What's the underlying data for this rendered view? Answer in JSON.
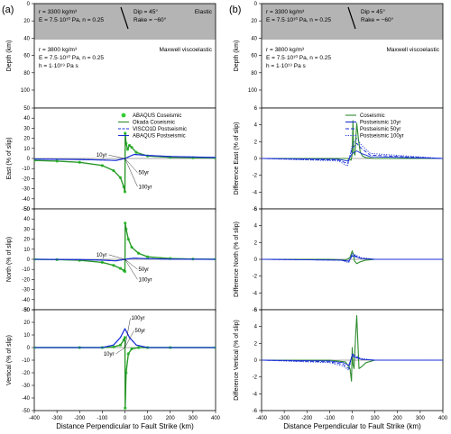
{
  "panel_labels": [
    "(a)",
    "(b)"
  ],
  "model": {
    "elastic_layer": {
      "density": "r = 3300 kg/m³",
      "elastic": "E = 7.5·10¹⁰ Pa, n = 0.25",
      "dip": "Dip = 45°",
      "rake": "Rake = −60°",
      "name": "Elastic"
    },
    "viscoelastic_layer": {
      "density": "r = 3800 kg/m³",
      "elastic": "E = 7.5·10¹⁰ Pa, n = 0.25",
      "viscosity": "h = 1·10¹⁹ Pa s",
      "name": "Maxwell viscoelastic"
    },
    "depth_label": "Depth (km)",
    "depth_ticks": [
      "0",
      "20",
      "40",
      "60",
      "80",
      "100"
    ]
  },
  "x_axis": {
    "label": "Distance Perpendicular to Fault Strike (km)",
    "ticks": [
      "-400",
      "-300",
      "-200",
      "-100",
      "0",
      "100",
      "200",
      "300",
      "400"
    ]
  },
  "chart_data": [
    {
      "type": "line",
      "id": "east-left",
      "ylabel": "East (% of slip)",
      "ylim": [
        -50,
        50
      ],
      "yticks": [
        50,
        40,
        30,
        20,
        10,
        0,
        -10,
        -20,
        -30,
        -40,
        -50
      ],
      "xlim": [
        -400,
        400
      ],
      "legend": [
        "ABAQUS Coseismic",
        "Okada Coseismic",
        "VISCO1D Postseismic",
        "ABAQUS Postseismic"
      ],
      "annotations": [
        "10yr",
        "50yr",
        "100yr"
      ],
      "series": [
        {
          "name": "ABAQUS Coseismic",
          "x": [
            -400,
            -300,
            -200,
            -100,
            -50,
            -20,
            -5,
            0,
            1,
            5,
            12,
            20,
            30,
            50,
            100,
            200,
            300,
            400
          ],
          "y": [
            -2,
            -2.6,
            -3.8,
            -7,
            -12,
            -19,
            -28,
            -33,
            25,
            15,
            9,
            13,
            11,
            6,
            2.5,
            1.2,
            0.7,
            0.5
          ]
        },
        {
          "name": "Okada Coseismic",
          "x": [
            -400,
            -300,
            -200,
            -100,
            -50,
            -20,
            -5,
            0,
            1,
            5,
            12,
            20,
            30,
            50,
            100,
            200,
            300,
            400
          ],
          "y": [
            -2,
            -2.6,
            -3.8,
            -7,
            -12,
            -19,
            -28,
            -33,
            25,
            15,
            9,
            13,
            11,
            6,
            2.5,
            1.2,
            0.7,
            0.5
          ]
        },
        {
          "name": "VISCO1D Postseismic",
          "x": [
            -400,
            -200,
            -100,
            -40,
            0,
            40,
            100,
            200,
            400
          ],
          "y": [
            -0.5,
            -1,
            -1.5,
            -2,
            0,
            4,
            3,
            2,
            1
          ]
        },
        {
          "name": "ABAQUS Postseismic",
          "x": [
            -400,
            -200,
            -100,
            -40,
            0,
            40,
            100,
            200,
            400
          ],
          "y": [
            -0.5,
            -1,
            -1.5,
            -2,
            0,
            4,
            3,
            2,
            1
          ]
        }
      ]
    },
    {
      "type": "line",
      "id": "north-left",
      "ylabel": "North (% of slip)",
      "ylim": [
        -50,
        50
      ],
      "yticks": [
        50,
        40,
        30,
        20,
        10,
        0,
        -10,
        -20,
        -30,
        -40,
        -50
      ],
      "xlim": [
        -400,
        400
      ],
      "annotations": [
        "10yr",
        "50yr",
        "100yr"
      ],
      "series": [
        {
          "name": "ABAQUS Coseismic",
          "x": [
            -400,
            -300,
            -200,
            -100,
            -50,
            -20,
            -5,
            0,
            1,
            5,
            15,
            30,
            60,
            100,
            200,
            300,
            400
          ],
          "y": [
            0,
            -0.3,
            -1,
            -3,
            -6,
            -9,
            -11,
            -12,
            36,
            30,
            20,
            12,
            6,
            2.5,
            0.8,
            0.3,
            0.1
          ]
        },
        {
          "name": "Okada Coseismic",
          "x": [
            -400,
            -300,
            -200,
            -100,
            -50,
            -20,
            -5,
            0,
            1,
            5,
            15,
            30,
            60,
            100,
            200,
            300,
            400
          ],
          "y": [
            0,
            -0.3,
            -1,
            -3,
            -6,
            -9,
            -11,
            -12,
            36,
            30,
            20,
            12,
            6,
            2.5,
            0.8,
            0.3,
            0.1
          ]
        },
        {
          "name": "VISCO1D Postseismic",
          "x": [
            -400,
            -200,
            -100,
            -40,
            0,
            40,
            100,
            200,
            400
          ],
          "y": [
            0,
            -0.3,
            -0.8,
            -1.5,
            0,
            1.2,
            0.6,
            0.2,
            0
          ]
        },
        {
          "name": "ABAQUS Postseismic",
          "x": [
            -400,
            -200,
            -100,
            -40,
            0,
            40,
            100,
            200,
            400
          ],
          "y": [
            0,
            -0.3,
            -0.8,
            -1.5,
            0,
            1.2,
            0.6,
            0.2,
            0
          ]
        }
      ]
    },
    {
      "type": "line",
      "id": "vertical-left",
      "ylabel": "Vertical (% of slip)",
      "ylim": [
        -50,
        30
      ],
      "yticks": [
        30,
        20,
        10,
        0,
        -10,
        -20,
        -30,
        -40,
        -50
      ],
      "xlim": [
        -400,
        400
      ],
      "xlabel": "Distance Perpendicular to Fault Strike (km)",
      "annotations": [
        "100yr",
        "50yr",
        "10yr"
      ],
      "series": [
        {
          "name": "ABAQUS Coseismic",
          "x": [
            -400,
            -200,
            -100,
            -50,
            -20,
            -5,
            0,
            1,
            5,
            15,
            30,
            60,
            100,
            200,
            400
          ],
          "y": [
            0,
            0,
            0,
            0.5,
            2,
            6,
            8,
            -48,
            -20,
            -5,
            -1,
            0,
            0,
            0,
            0
          ]
        },
        {
          "name": "Okada Coseismic",
          "x": [
            -400,
            -200,
            -100,
            -50,
            -20,
            -5,
            0,
            1,
            5,
            15,
            30,
            60,
            100,
            200,
            400
          ],
          "y": [
            0,
            0,
            0,
            0.5,
            2,
            6,
            8,
            -48,
            -20,
            -5,
            -1,
            0,
            0,
            0,
            0
          ]
        },
        {
          "name": "VISCO1D Postseismic",
          "x": [
            -400,
            -200,
            -100,
            -50,
            -20,
            0,
            20,
            50,
            100,
            200,
            400
          ],
          "y": [
            0,
            0,
            0,
            2,
            8,
            15,
            8,
            2,
            0,
            0,
            0
          ]
        },
        {
          "name": "ABAQUS Postseismic",
          "x": [
            -400,
            -200,
            -100,
            -50,
            -20,
            0,
            20,
            50,
            100,
            200,
            400
          ],
          "y": [
            0,
            0,
            0,
            2,
            8,
            15,
            8,
            2,
            0,
            0,
            0
          ]
        }
      ]
    },
    {
      "type": "line",
      "id": "east-right",
      "ylabel": "Difference East (% of slip)",
      "ylim": [
        -6,
        6
      ],
      "yticks": [
        6,
        4,
        2,
        0,
        -2,
        -4,
        -6
      ],
      "xlim": [
        -400,
        400
      ],
      "legend": [
        "Coseismic",
        "Postseismic 10yr",
        "Postseismic 50yr",
        "Postseismic 100yr"
      ],
      "series": [
        {
          "name": "Coseismic",
          "x": [
            -400,
            -100,
            -20,
            -5,
            0,
            3,
            6,
            12,
            20,
            28,
            35,
            45,
            60,
            100,
            400
          ],
          "y": [
            0,
            0,
            0,
            -0.2,
            0.5,
            4.5,
            0.8,
            0.4,
            4.2,
            2.2,
            0.8,
            0.3,
            0.1,
            0,
            0
          ]
        },
        {
          "name": "Postseismic 10yr",
          "x": [
            -400,
            -60,
            -20,
            0,
            20,
            40,
            80,
            400
          ],
          "y": [
            0,
            -0.1,
            -0.3,
            0.6,
            0.9,
            0.6,
            0.2,
            0
          ]
        },
        {
          "name": "Postseismic 50yr",
          "x": [
            -400,
            -60,
            -20,
            0,
            20,
            40,
            80,
            400
          ],
          "y": [
            0,
            -0.2,
            -0.6,
            1.2,
            1.8,
            1.2,
            0.4,
            0
          ]
        },
        {
          "name": "Postseismic 100yr",
          "x": [
            -400,
            -60,
            -20,
            0,
            20,
            40,
            80,
            400
          ],
          "y": [
            0,
            -0.3,
            -0.9,
            1.6,
            2.4,
            1.6,
            0.6,
            0
          ]
        }
      ]
    },
    {
      "type": "line",
      "id": "north-right",
      "ylabel": "Difference North (% of slip)",
      "ylim": [
        -6,
        6
      ],
      "yticks": [
        6,
        4,
        2,
        0,
        -2,
        -4,
        -6
      ],
      "xlim": [
        -400,
        400
      ],
      "series": [
        {
          "name": "Coseismic",
          "x": [
            -400,
            -100,
            -30,
            -10,
            0,
            5,
            10,
            20,
            35,
            60,
            100,
            400
          ],
          "y": [
            0,
            0,
            -0.1,
            0.2,
            1,
            0.6,
            -0.2,
            -0.5,
            -0.3,
            -0.1,
            0,
            0
          ]
        },
        {
          "name": "Postseismic 10yr",
          "x": [
            -400,
            -50,
            -15,
            0,
            15,
            40,
            100,
            400
          ],
          "y": [
            0,
            -0.1,
            -0.2,
            0.4,
            0.3,
            0.1,
            0,
            0
          ]
        },
        {
          "name": "Postseismic 50yr",
          "x": [
            -400,
            -50,
            -15,
            0,
            15,
            40,
            100,
            400
          ],
          "y": [
            0,
            -0.1,
            -0.3,
            0.6,
            0.4,
            0.1,
            0,
            0
          ]
        },
        {
          "name": "Postseismic 100yr",
          "x": [
            -400,
            -50,
            -15,
            0,
            15,
            40,
            100,
            400
          ],
          "y": [
            0,
            -0.1,
            -0.4,
            0.7,
            0.5,
            0.2,
            0,
            0
          ]
        }
      ]
    },
    {
      "type": "line",
      "id": "vertical-right",
      "ylabel": "Difference Vertical (% of slip)",
      "ylim": [
        -6,
        6
      ],
      "yticks": [
        6,
        4,
        2,
        0,
        -2,
        -4,
        -6
      ],
      "xlim": [
        -400,
        400
      ],
      "xlabel": "Distance Perpendicular to Fault Strike (km)",
      "series": [
        {
          "name": "Coseismic",
          "x": [
            -400,
            -100,
            -30,
            -10,
            -3,
            0,
            3,
            8,
            15,
            20,
            25,
            30,
            40,
            60,
            100,
            400
          ],
          "y": [
            0,
            0,
            -0.2,
            -1,
            -2.5,
            1.5,
            -0.5,
            -1,
            3,
            5.3,
            2,
            -1,
            -0.8,
            -0.3,
            0,
            0
          ]
        },
        {
          "name": "Postseismic 10yr",
          "x": [
            -400,
            -100,
            -40,
            -15,
            0,
            15,
            40,
            100,
            400
          ],
          "y": [
            0,
            -0.1,
            -0.3,
            -0.6,
            0.5,
            0.3,
            0.1,
            0,
            0
          ]
        },
        {
          "name": "Postseismic 50yr",
          "x": [
            -400,
            -100,
            -40,
            -15,
            0,
            15,
            40,
            100,
            400
          ],
          "y": [
            0,
            -0.2,
            -0.5,
            -1,
            0.7,
            0.4,
            0.1,
            0,
            0
          ]
        },
        {
          "name": "Postseismic 100yr",
          "x": [
            -400,
            -100,
            -40,
            -15,
            0,
            15,
            40,
            100,
            400
          ],
          "y": [
            0,
            -0.3,
            -0.7,
            -1.2,
            0.8,
            0.5,
            0.2,
            0,
            0
          ]
        }
      ]
    }
  ],
  "colors": {
    "abaqus_coseismic": "#33cc33",
    "okada_coseismic": "#2e8b2e",
    "visco1d_postseismic": "#1a2fd6",
    "abaqus_postseismic": "#1a2fd6",
    "diff_coseismic": "#2e8b2e",
    "diff_post10": "#1a2fd6",
    "diff_post50": "#1a2fd6",
    "diff_post100": "#1a2fd6",
    "elastic_layer": "#b4b4b4",
    "zero_line": "#555555"
  }
}
